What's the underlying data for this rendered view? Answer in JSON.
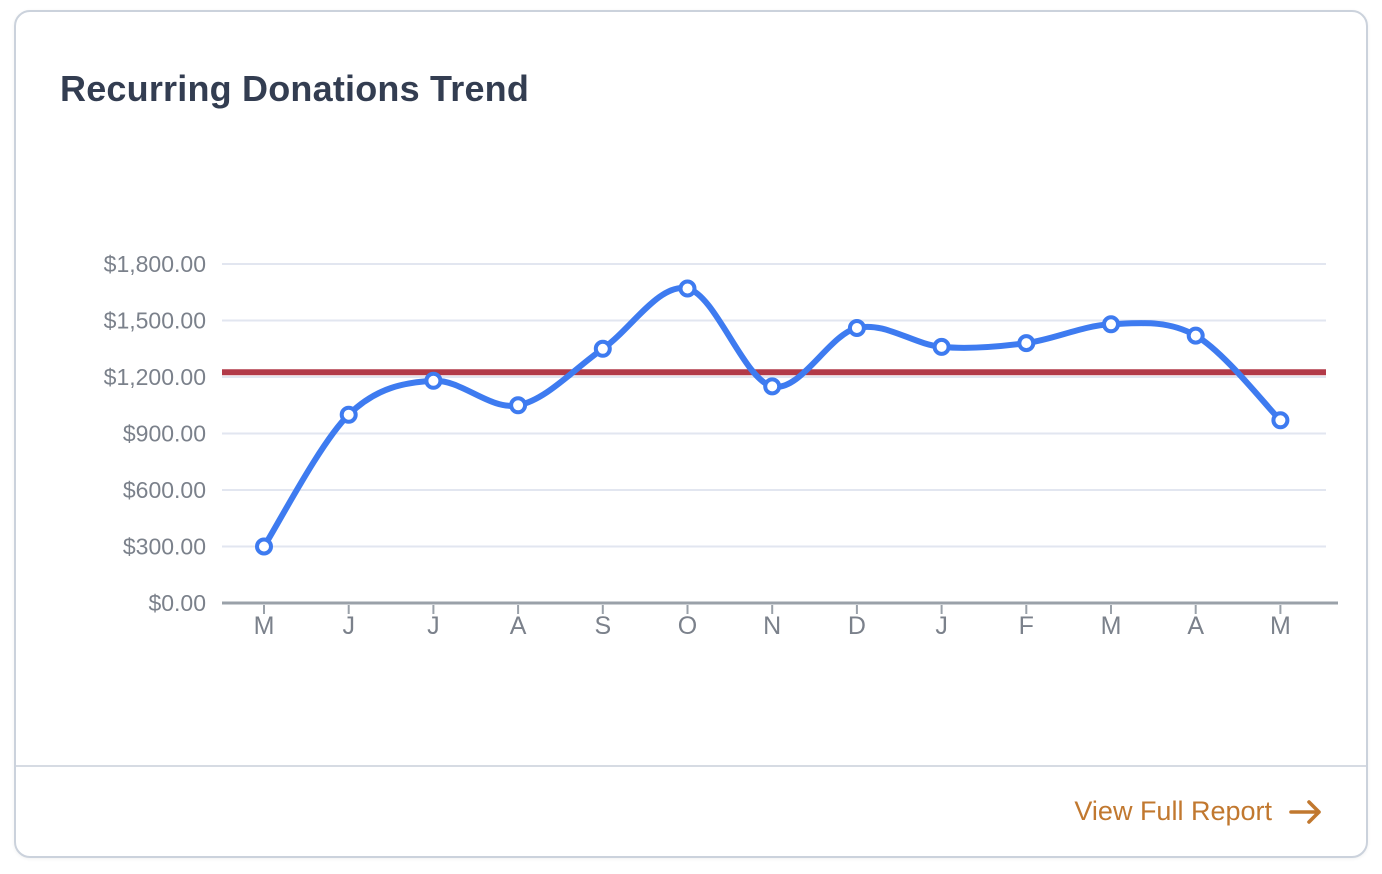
{
  "card": {
    "title": "Recurring Donations Trend",
    "footer": {
      "link_label": "View Full Report",
      "arrow_icon": "arrow-right"
    }
  },
  "colors": {
    "title": "#333d51",
    "axis_label": "#7b818b",
    "axis_line": "#9aa1a9",
    "gridline": "#e2e6f0",
    "line": "#3e7bf0",
    "marker_fill": "#ffffff",
    "reference_line": "#b23a48",
    "link": "#c1782f",
    "card_border": "#cbd2dc"
  },
  "chart_data": {
    "type": "line",
    "title": "Recurring Donations Trend",
    "categories": [
      "M",
      "J",
      "J",
      "A",
      "S",
      "O",
      "N",
      "D",
      "J",
      "F",
      "M",
      "A",
      "M"
    ],
    "values": [
      300,
      1000,
      1180,
      1050,
      1350,
      1670,
      1150,
      1460,
      1360,
      1380,
      1480,
      1420,
      970
    ],
    "ylim": [
      0,
      1800
    ],
    "y_ticks": [
      {
        "value": 1800,
        "label": "$1,800.00"
      },
      {
        "value": 1500,
        "label": "$1,500.00"
      },
      {
        "value": 1200,
        "label": "$1,200.00"
      },
      {
        "value": 900,
        "label": "$900.00"
      },
      {
        "value": 600,
        "label": "$600.00"
      },
      {
        "value": 300,
        "label": "$300.00"
      },
      {
        "value": 0,
        "label": "$0.00"
      }
    ],
    "reference_line": {
      "value": 1225
    },
    "smooth": true,
    "grid": true,
    "markers": true,
    "legend": "none"
  }
}
